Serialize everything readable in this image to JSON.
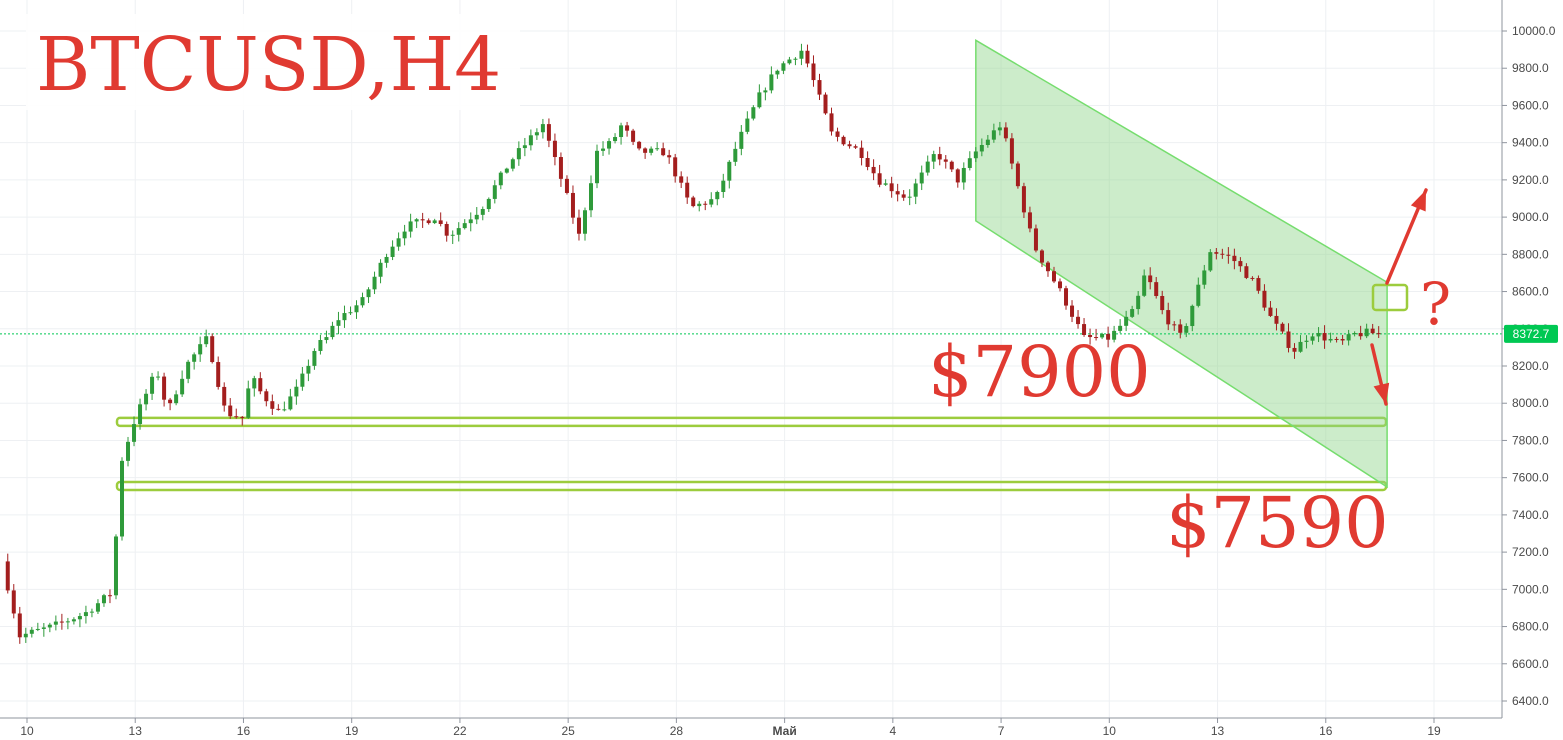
{
  "header": {
    "title": "BTCUSD,H4"
  },
  "annotations": {
    "level_upper": "$7900",
    "level_lower": "$7590",
    "question": "?"
  },
  "price_label": {
    "value": "8372.7",
    "price": 8372.7,
    "color": "#00c853"
  },
  "colors": {
    "up": "#2e9a3a",
    "down": "#a31e1e",
    "channel": "#8fd48a",
    "zone_border": "#9ccc3d",
    "arrow": "#e03a31",
    "grid": "#eef0f3"
  },
  "chart_data": {
    "type": "candlestick",
    "symbol": "BTCUSD",
    "timeframe": "H4",
    "ylim": [
      6300,
      10100
    ],
    "y_ticks": [
      6400,
      6600,
      6800,
      7000,
      7200,
      7400,
      7600,
      7800,
      8000,
      8200,
      8400,
      8600,
      8800,
      9000,
      9200,
      9400,
      9600,
      9800,
      10000
    ],
    "y_tick_labels": [
      "6400.0",
      "6600.0",
      "6800.0",
      "7000.0",
      "7200.0",
      "7400.0",
      "7600.0",
      "7800.0",
      "8000.0",
      "8200.0",
      "8400.0",
      "8600.0",
      "8800.0",
      "9000.0",
      "9200.0",
      "9400.0",
      "9600.0",
      "9800.0",
      "10000.0"
    ],
    "x_tick_labels": [
      "10",
      "13",
      "16",
      "19",
      "22",
      "25",
      "28",
      "Май",
      "4",
      "7",
      "10",
      "13",
      "16",
      "19"
    ],
    "x_tick_days": [
      0,
      3,
      6,
      9,
      12,
      15,
      18,
      21,
      24,
      27,
      30,
      33,
      36,
      39
    ],
    "x_range_days": [
      -0.75,
      40.4
    ],
    "current_price": 8372.7,
    "path_days": [
      -0.7,
      -0.2,
      0.7,
      1.6,
      2.4,
      2.55,
      3.0,
      3.6,
      3.9,
      4.4,
      5.0,
      5.5,
      6.0,
      6.2,
      6.5,
      7.0,
      7.5,
      8.0,
      8.3,
      8.6,
      9.3,
      10.0,
      10.5,
      11.0,
      11.3,
      11.7,
      12.6,
      13.4,
      14.3,
      14.9,
      15.3,
      15.8,
      16.2,
      16.5,
      16.9,
      17.7,
      18.4,
      19.1,
      19.7,
      20.3,
      20.8,
      21.5,
      22.3,
      23.1,
      23.6,
      24.4,
      25.2,
      25.8,
      26.3,
      27.0,
      27.9,
      28.7,
      29.3,
      30.0,
      30.7,
      31.0,
      31.5,
      32.0,
      32.8,
      33.4,
      34.0,
      34.5,
      35.1,
      35.6,
      36.0,
      36.4,
      36.8,
      37.2,
      37.5
    ],
    "path_close": [
      7150,
      6750,
      6800,
      6870,
      6990,
      7650,
      7920,
      8180,
      7950,
      8200,
      8350,
      7950,
      7920,
      8150,
      8050,
      7950,
      8080,
      8300,
      8350,
      8450,
      8550,
      8820,
      8950,
      8980,
      9000,
      8900,
      9050,
      9300,
      9500,
      9150,
      8900,
      9350,
      9400,
      9500,
      9350,
      9350,
      9050,
      9100,
      9400,
      9650,
      9800,
      9900,
      9450,
      9350,
      9200,
      9100,
      9350,
      9200,
      9350,
      9500,
      8850,
      8580,
      8350,
      8350,
      8500,
      8700,
      8480,
      8350,
      8820,
      8780,
      8650,
      8450,
      8280,
      8380,
      8350,
      8320,
      8370,
      8380,
      8372.7
    ]
  }
}
